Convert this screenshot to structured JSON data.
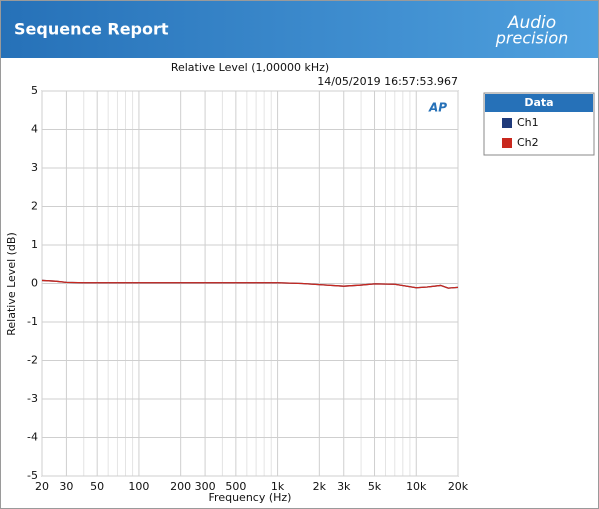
{
  "header": {
    "title": "Sequence Report",
    "logo_top": "Audio",
    "logo_bottom": "precision"
  },
  "chart_data": {
    "type": "line",
    "title": "Relative Level (1,00000 kHz)",
    "subtitle": "14/05/2019 16:57:53.967",
    "watermark": "AP",
    "legend_title": "Data",
    "xlabel": "Frequency (Hz)",
    "ylabel": "Relative Level (dB)",
    "log_x": true,
    "grid": true,
    "x": [
      20,
      25,
      30,
      40,
      50,
      100,
      200,
      500,
      1000,
      1500,
      2000,
      3000,
      4000,
      5000,
      7000,
      10000,
      12000,
      15000,
      17000,
      20000
    ],
    "series": [
      {
        "name": "Ch1",
        "color": "#1f3a7a",
        "values": [
          0.08,
          0.06,
          0.03,
          0.02,
          0.02,
          0.02,
          0.02,
          0.02,
          0.02,
          0.0,
          -0.03,
          -0.07,
          -0.04,
          -0.01,
          -0.02,
          -0.11,
          -0.09,
          -0.05,
          -0.12,
          -0.1
        ]
      },
      {
        "name": "Ch2",
        "color": "#c8281e",
        "values": [
          0.08,
          0.06,
          0.03,
          0.02,
          0.02,
          0.02,
          0.02,
          0.02,
          0.02,
          0.0,
          -0.03,
          -0.07,
          -0.04,
          -0.01,
          -0.02,
          -0.11,
          -0.09,
          -0.05,
          -0.12,
          -0.1
        ]
      }
    ],
    "xlim": [
      20,
      20000
    ],
    "xticks": [
      20,
      30,
      50,
      100,
      200,
      300,
      500,
      {
        "value": 1000,
        "label": "1k"
      },
      {
        "value": 2000,
        "label": "2k"
      },
      {
        "value": 3000,
        "label": "3k"
      },
      {
        "value": 5000,
        "label": "5k"
      },
      {
        "value": 10000,
        "label": "10k"
      },
      {
        "value": 20000,
        "label": "20k"
      }
    ],
    "xgrid_minor": [
      40,
      60,
      70,
      80,
      90,
      400,
      600,
      700,
      800,
      900,
      4000,
      6000,
      7000,
      8000,
      9000
    ],
    "ylim": [
      -5,
      5
    ],
    "yticks": [
      -5,
      -4,
      -3,
      -2,
      -1,
      0,
      1,
      2,
      3,
      4,
      5
    ]
  }
}
